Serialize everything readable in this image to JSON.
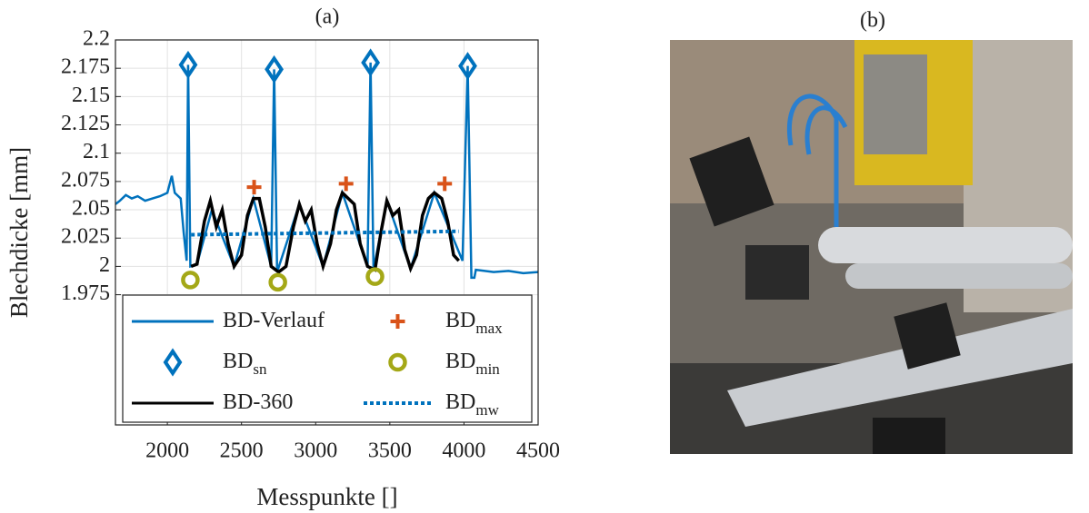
{
  "chart_data": {
    "type": "line",
    "title": "(a)",
    "x_label": "Messpunkte []",
    "y_label": "Blechdicke [mm]",
    "xlim": [
      1650,
      4500
    ],
    "xticks": [
      2000,
      2500,
      3000,
      3500,
      4000,
      4500
    ],
    "ylim": [
      1.86,
      2.2
    ],
    "yticks": [
      1.975,
      2,
      2.025,
      2.05,
      2.075,
      2.1,
      2.125,
      2.15,
      2.175,
      2.2
    ],
    "grid": true,
    "legend": "bottom",
    "series": [
      {
        "name": "BD-Verlauf",
        "type": "line",
        "style": "solid",
        "color": "#0072bd",
        "x": [
          1650,
          1680,
          1720,
          1760,
          1800,
          1850,
          1900,
          1950,
          2000,
          2030,
          2050,
          2090,
          2110,
          2130,
          2140,
          2155,
          2200,
          2300,
          2450,
          2580,
          2700,
          2720,
          2740,
          2890,
          3050,
          3180,
          3350,
          3370,
          3390,
          3480,
          3640,
          3800,
          3990,
          4025,
          4050,
          4070,
          4080,
          4200,
          4300,
          4400,
          4500
        ],
        "values": [
          2.055,
          2.058,
          2.063,
          2.06,
          2.062,
          2.058,
          2.06,
          2.062,
          2.065,
          2.08,
          2.065,
          2.06,
          2.03,
          2.005,
          2.178,
          2.0,
          2.002,
          2.05,
          2.0,
          2.06,
          2.0,
          2.174,
          1.995,
          2.055,
          2.0,
          2.065,
          2.0,
          2.18,
          1.997,
          2.058,
          1.998,
          2.065,
          2.005,
          2.177,
          1.99,
          1.99,
          1.997,
          1.995,
          1.996,
          1.994,
          1.995
        ]
      },
      {
        "name": "BD",
        "subscript": "sn",
        "type": "scatter",
        "marker": "diamond",
        "color": "#0072bd",
        "x": [
          2140,
          2720,
          3370,
          4025
        ],
        "values": [
          2.178,
          2.174,
          2.18,
          2.177
        ]
      },
      {
        "name": "BD-360",
        "type": "line",
        "style": "solid",
        "color": "#000000",
        "x": [
          2160,
          2200,
          2250,
          2290,
          2330,
          2370,
          2410,
          2450,
          2500,
          2540,
          2580,
          2620,
          2660,
          2700,
          2750,
          2800,
          2850,
          2890,
          2930,
          2970,
          3010,
          3050,
          3100,
          3140,
          3180,
          3220,
          3260,
          3300,
          3350,
          3400,
          3440,
          3480,
          3520,
          3560,
          3600,
          3640,
          3680,
          3720,
          3760,
          3800,
          3850,
          3890,
          3930,
          3965
        ],
        "values": [
          2.0,
          2.002,
          2.04,
          2.058,
          2.035,
          2.05,
          2.02,
          2.0,
          2.01,
          2.045,
          2.06,
          2.06,
          2.035,
          2.0,
          1.995,
          2.0,
          2.035,
          2.055,
          2.04,
          2.05,
          2.02,
          2.0,
          2.02,
          2.05,
          2.065,
          2.06,
          2.055,
          2.02,
          2.0,
          1.997,
          2.03,
          2.058,
          2.045,
          2.05,
          2.015,
          1.998,
          2.01,
          2.045,
          2.06,
          2.065,
          2.06,
          2.04,
          2.01,
          2.005
        ]
      },
      {
        "name": "BD",
        "subscript": "max",
        "type": "scatter",
        "marker": "plus",
        "color": "#d95319",
        "x": [
          2585,
          3205,
          3870
        ],
        "values": [
          2.07,
          2.073,
          2.073
        ]
      },
      {
        "name": "BD",
        "subscript": "min",
        "type": "scatter",
        "marker": "circle",
        "color": "#a4a817",
        "x": [
          2155,
          2745,
          3400
        ],
        "values": [
          1.988,
          1.986,
          1.991
        ]
      },
      {
        "name": "BD",
        "subscript": "mw",
        "type": "line",
        "style": "dotted",
        "color": "#0072bd",
        "x": [
          2160,
          3965
        ],
        "values": [
          2.028,
          2.031
        ]
      }
    ]
  },
  "photo": {
    "label": "(b)"
  }
}
